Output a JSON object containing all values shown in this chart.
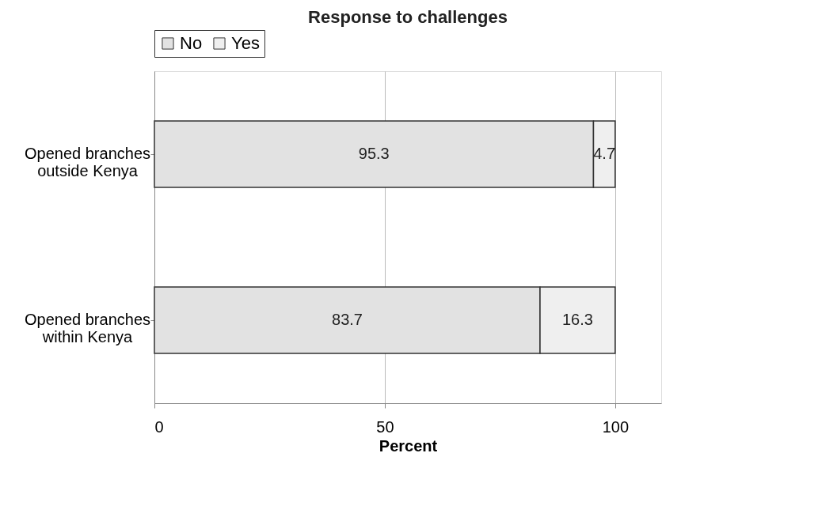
{
  "chart_data": {
    "type": "bar",
    "orientation": "horizontal",
    "stacked": true,
    "title": "Response to challenges",
    "xlabel": "Percent",
    "categories": [
      "Opened branches outside Kenya",
      "Opened branches within Kenya"
    ],
    "series": [
      {
        "name": "No",
        "color": "#e2e2e2",
        "values": [
          95.3,
          83.7
        ]
      },
      {
        "name": "Yes",
        "color": "#efefef",
        "values": [
          4.7,
          16.3
        ]
      }
    ],
    "xlim": [
      0,
      110
    ],
    "xticks": [
      0,
      50,
      100
    ],
    "grid": "x",
    "legend": "top",
    "data_labels": true
  }
}
